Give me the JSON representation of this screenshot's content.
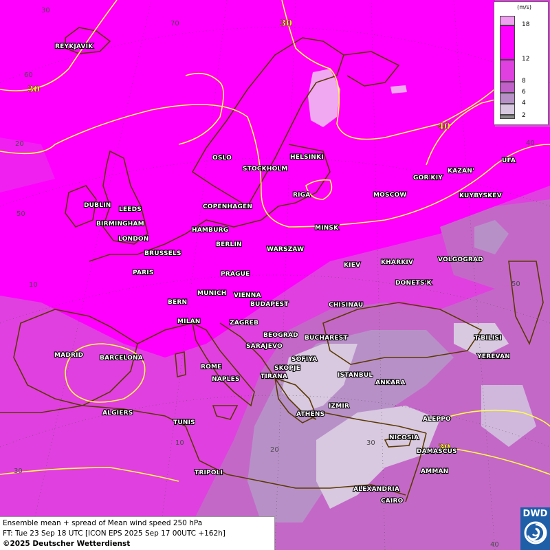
{
  "map": {
    "title": "Ensemble mean + spread of Mean wind speed 250 hPa",
    "forecast_line": "FT: Tue 23 Sep 18 UTC [ICON EPS 2025 Sep 17 00UTC +162h]",
    "copyright": "©2025 Deutscher Wetterdienst",
    "logo_text": "DWD",
    "colors": {
      "spread_gt18": "#f0a0f0",
      "spread_12_18": "#ff00ff",
      "spread_8_12": "#e040e0",
      "spread_6_8": "#c060c8",
      "spread_4_6": "#b890c8",
      "spread_2_4": "#d8c8e0",
      "spread_lt2": "#8a8a8a",
      "contour": "#ffff40",
      "coast": "#5a3a00"
    }
  },
  "legend": {
    "unit": "(m/s)",
    "ticks": [
      "18",
      "12",
      "8",
      "6",
      "4",
      "2"
    ]
  },
  "contour_labels": [
    "30",
    "30",
    "40",
    "30"
  ],
  "grid_labels": {
    "lat_left": [
      "70",
      "60",
      "50",
      "30"
    ],
    "lon_top": [
      "30"
    ],
    "lon_right": [
      "50",
      "40"
    ],
    "inner": [
      "20",
      "10",
      "10",
      "20",
      "30",
      "40",
      "50",
      "40",
      "20"
    ]
  },
  "cities": [
    "REYKJAVIK",
    "OSLO",
    "STOCKHOLM",
    "HELSINKI",
    "RIGA",
    "MOSCOW",
    "GOR'KIY",
    "KAZAN'",
    "UFA",
    "KUYBYSKEV",
    "DUBLIN",
    "LEEDS",
    "BIRMINGHAM",
    "LONDON",
    "COPENHAGEN",
    "HAMBURG",
    "BERLIN",
    "MINSK",
    "WARSZAW",
    "KIEV",
    "KHARKIV",
    "VOLGOGRAD",
    "BRUSSELS",
    "PARIS",
    "PRAGUE",
    "DONETS'K",
    "BERN",
    "MUNICH",
    "VIENNA",
    "BUDAPEST",
    "CHISINAU",
    "MILAN",
    "ZAGREB",
    "BEOGRAD",
    "BUCHAREST",
    "T'BILISI",
    "MADRID",
    "BARCELONA",
    "SARAJEVO",
    "SOFIYA",
    "YEREVAN",
    "ROME",
    "NAPLES",
    "TIRANA",
    "SKOPJE",
    "ISTANBUL",
    "ANKARA",
    "ALGIERS",
    "ATHENS",
    "IZMIR",
    "ALEPPO",
    "TUNIS",
    "NICOSIA",
    "DAMASCUS",
    "TRIPOLI",
    "AMMAN",
    "ALEXANDRIA",
    "CAIRO"
  ]
}
